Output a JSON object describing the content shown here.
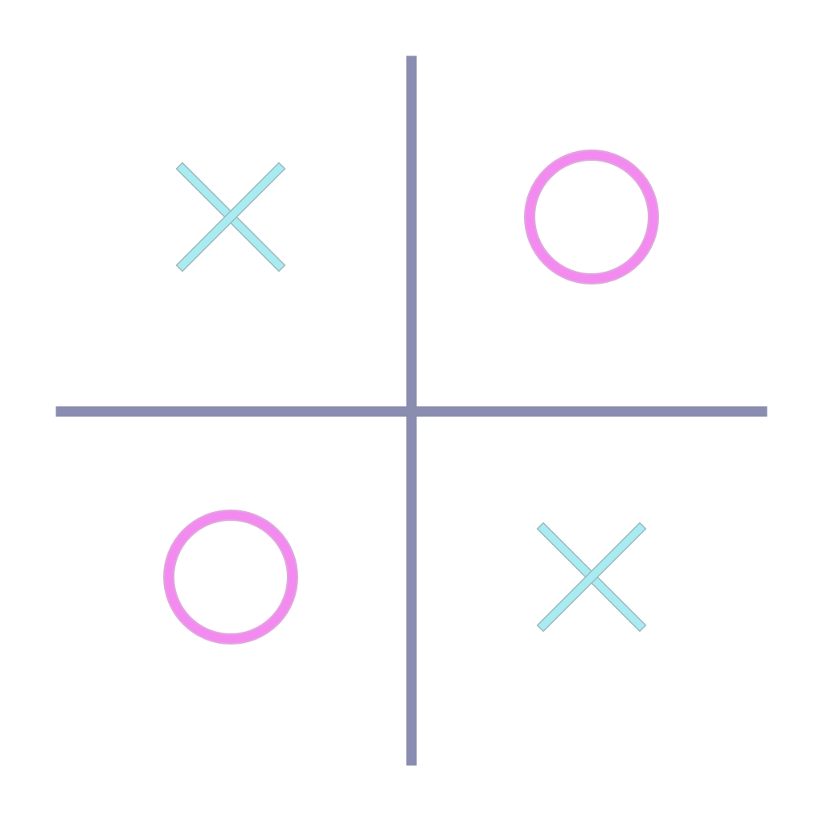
{
  "board": {
    "rows": 2,
    "cols": 2,
    "cells": [
      [
        "X",
        "O"
      ],
      [
        "O",
        "X"
      ]
    ]
  },
  "colors": {
    "grid": "#8a8cb0",
    "x_mark": "#a8ecf2",
    "x_mark_outline": "#9fb8bd",
    "o_mark": "#f38af0",
    "o_mark_outline": "#e0a6de",
    "background": "#ffffff"
  },
  "icons": {
    "x": "x-mark-icon",
    "o": "o-mark-icon"
  }
}
